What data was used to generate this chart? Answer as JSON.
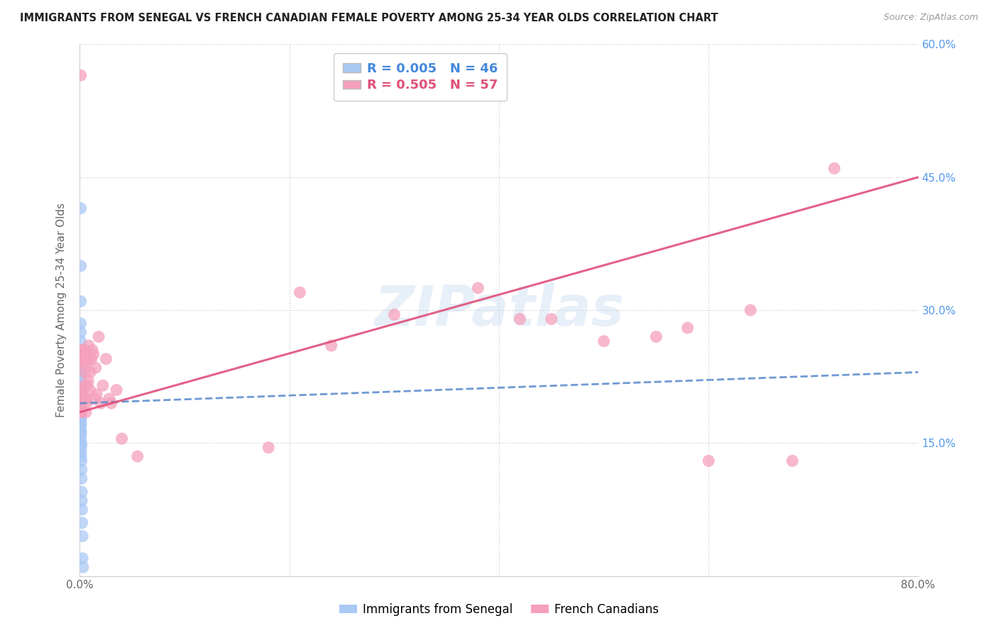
{
  "title": "IMMIGRANTS FROM SENEGAL VS FRENCH CANADIAN FEMALE POVERTY AMONG 25-34 YEAR OLDS CORRELATION CHART",
  "source": "Source: ZipAtlas.com",
  "ylabel": "Female Poverty Among 25-34 Year Olds",
  "xlim": [
    0,
    0.8
  ],
  "ylim": [
    0,
    0.6
  ],
  "group1_label": "Immigrants from Senegal",
  "group2_label": "French Canadians",
  "group1_color": "#aac9f5",
  "group2_color": "#f5a0bc",
  "group1_line_color": "#5588cc",
  "group2_line_color": "#e0507a",
  "watermark": "ZIPatlas",
  "group1_R": 0.005,
  "group1_N": 46,
  "group2_R": 0.505,
  "group2_N": 57,
  "group1_x": [
    0.0008,
    0.0008,
    0.0008,
    0.0008,
    0.0008,
    0.0008,
    0.0008,
    0.0008,
    0.0008,
    0.0008,
    0.0008,
    0.0008,
    0.001,
    0.001,
    0.001,
    0.001,
    0.001,
    0.001,
    0.001,
    0.001,
    0.001,
    0.001,
    0.001,
    0.001,
    0.001,
    0.001,
    0.001,
    0.001,
    0.001,
    0.001,
    0.001,
    0.0012,
    0.0012,
    0.0012,
    0.0012,
    0.0012,
    0.0015,
    0.0015,
    0.0015,
    0.0018,
    0.0018,
    0.002,
    0.0022,
    0.0025,
    0.0025,
    0.003
  ],
  "group1_y": [
    0.415,
    0.35,
    0.31,
    0.285,
    0.275,
    0.265,
    0.232,
    0.228,
    0.222,
    0.22,
    0.215,
    0.21,
    0.205,
    0.2,
    0.198,
    0.195,
    0.193,
    0.192,
    0.19,
    0.188,
    0.185,
    0.183,
    0.18,
    0.178,
    0.175,
    0.172,
    0.17,
    0.165,
    0.162,
    0.16,
    0.155,
    0.15,
    0.148,
    0.145,
    0.14,
    0.135,
    0.13,
    0.12,
    0.11,
    0.095,
    0.085,
    0.075,
    0.06,
    0.045,
    0.02,
    0.01
  ],
  "group2_x": [
    0.0008,
    0.001,
    0.0012,
    0.0015,
    0.0018,
    0.002,
    0.0022,
    0.0025,
    0.0028,
    0.003,
    0.0035,
    0.0038,
    0.004,
    0.0042,
    0.0045,
    0.0048,
    0.005,
    0.0055,
    0.0058,
    0.006,
    0.0065,
    0.007,
    0.0075,
    0.008,
    0.0085,
    0.009,
    0.0095,
    0.01,
    0.011,
    0.012,
    0.013,
    0.014,
    0.015,
    0.016,
    0.018,
    0.02,
    0.022,
    0.025,
    0.028,
    0.03,
    0.035,
    0.04,
    0.055,
    0.18,
    0.21,
    0.24,
    0.3,
    0.38,
    0.42,
    0.45,
    0.5,
    0.55,
    0.58,
    0.6,
    0.64,
    0.68,
    0.72
  ],
  "group2_y": [
    0.565,
    0.185,
    0.185,
    0.195,
    0.21,
    0.255,
    0.245,
    0.205,
    0.245,
    0.25,
    0.245,
    0.24,
    0.2,
    0.255,
    0.215,
    0.23,
    0.2,
    0.24,
    0.185,
    0.2,
    0.195,
    0.215,
    0.25,
    0.22,
    0.26,
    0.245,
    0.21,
    0.23,
    0.245,
    0.255,
    0.25,
    0.2,
    0.235,
    0.205,
    0.27,
    0.195,
    0.215,
    0.245,
    0.2,
    0.195,
    0.21,
    0.155,
    0.135,
    0.145,
    0.32,
    0.26,
    0.295,
    0.325,
    0.29,
    0.29,
    0.265,
    0.27,
    0.28,
    0.13,
    0.3,
    0.13,
    0.46
  ]
}
